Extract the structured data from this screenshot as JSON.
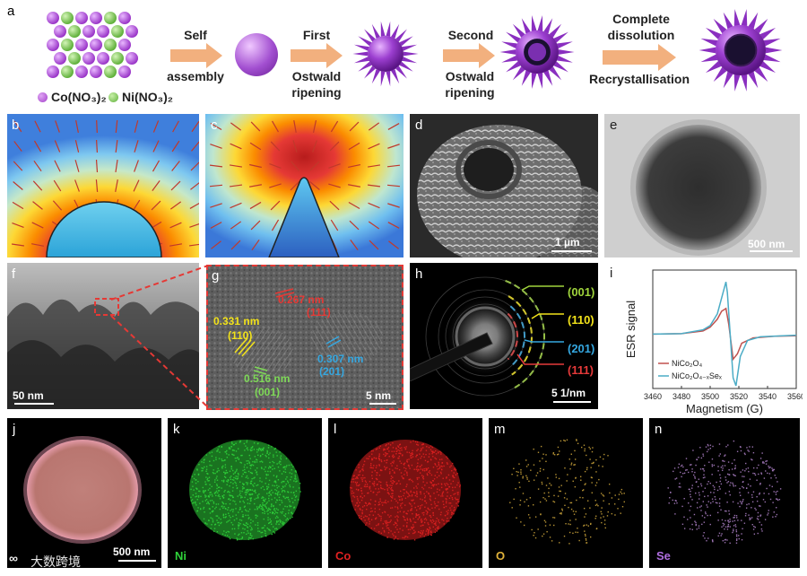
{
  "panel_letters": {
    "a": "a",
    "b": "b",
    "c": "c",
    "d": "d",
    "e": "e",
    "f": "f",
    "g": "g",
    "h": "h",
    "i": "i",
    "j": "j",
    "k": "k",
    "l": "l",
    "m": "m",
    "n": "n"
  },
  "schematic": {
    "legend_co": "Co(NO₃)₂",
    "legend_ni": "Ni(NO₃)₂",
    "step1": [
      "Self",
      "assembly"
    ],
    "step2": [
      "First",
      "Ostwald",
      "ripening"
    ],
    "step3": [
      "Second",
      "Ostwald",
      "ripening"
    ],
    "step4_top": [
      "Complete",
      "dissolution"
    ],
    "step4_bottom": "Recrystallisation",
    "colors": {
      "co": "#b04fd6",
      "ni": "#7fcf5a",
      "arrow": "#f2b07e",
      "sphere": "#a24fd0"
    }
  },
  "scalebars": {
    "d": "1 µm",
    "e": "500 nm",
    "f": "50 nm",
    "g": "5 nm",
    "h": "5 1/nm",
    "j": "500 nm"
  },
  "hrtem": {
    "d1": "0.267 nm",
    "d1_hkl": "(111)",
    "d2": "0.331 nm",
    "d2_hkl": "(110)",
    "d3": "0.307 nm",
    "d3_hkl": "(201)",
    "d4": "0.516 nm",
    "d4_hkl": "(001)"
  },
  "saed": {
    "rings": [
      {
        "label": "(001)",
        "color": "#9fd43c"
      },
      {
        "label": "(110)",
        "color": "#f2e21a"
      },
      {
        "label": "(201)",
        "color": "#35a7e0"
      },
      {
        "label": "(111)",
        "color": "#e63a3a"
      }
    ]
  },
  "eds_maps": [
    {
      "label": "Ni",
      "color": "#2fd23a"
    },
    {
      "label": "Co",
      "color": "#e02121"
    },
    {
      "label": "O",
      "color": "#e0b23a"
    },
    {
      "label": "Se",
      "color": "#b06ee0"
    }
  ],
  "watermark": "大数跨境",
  "chart_data": {
    "type": "line",
    "xlabel": "Magnetism (G)",
    "ylabel": "ESR signal",
    "xlim": [
      3460,
      3560
    ],
    "xticks": [
      3460,
      3480,
      3500,
      3520,
      3540,
      3560
    ],
    "legend_position": "bottom-left",
    "series": [
      {
        "name": "NiCo₂O₄",
        "color": "#c0504d",
        "x": [
          3460,
          3480,
          3495,
          3500,
          3505,
          3508,
          3511,
          3513,
          3516,
          3519,
          3522,
          3530,
          3545,
          3560
        ],
        "y": [
          0.02,
          0.03,
          0.08,
          0.15,
          0.3,
          0.45,
          0.5,
          0.2,
          -0.45,
          -0.35,
          -0.15,
          -0.05,
          -0.02,
          -0.01
        ]
      },
      {
        "name": "NiCo₂O₄₋ₓSeₓ",
        "color": "#4bacc6",
        "x": [
          3460,
          3480,
          3495,
          3500,
          3505,
          3508,
          3511,
          3512,
          3514,
          3516,
          3518,
          3521,
          3526,
          3535,
          3560
        ],
        "y": [
          0.02,
          0.03,
          0.1,
          0.18,
          0.4,
          0.7,
          1.0,
          0.8,
          0.0,
          -0.8,
          -0.95,
          -0.4,
          -0.1,
          -0.03,
          0.0
        ]
      }
    ]
  }
}
